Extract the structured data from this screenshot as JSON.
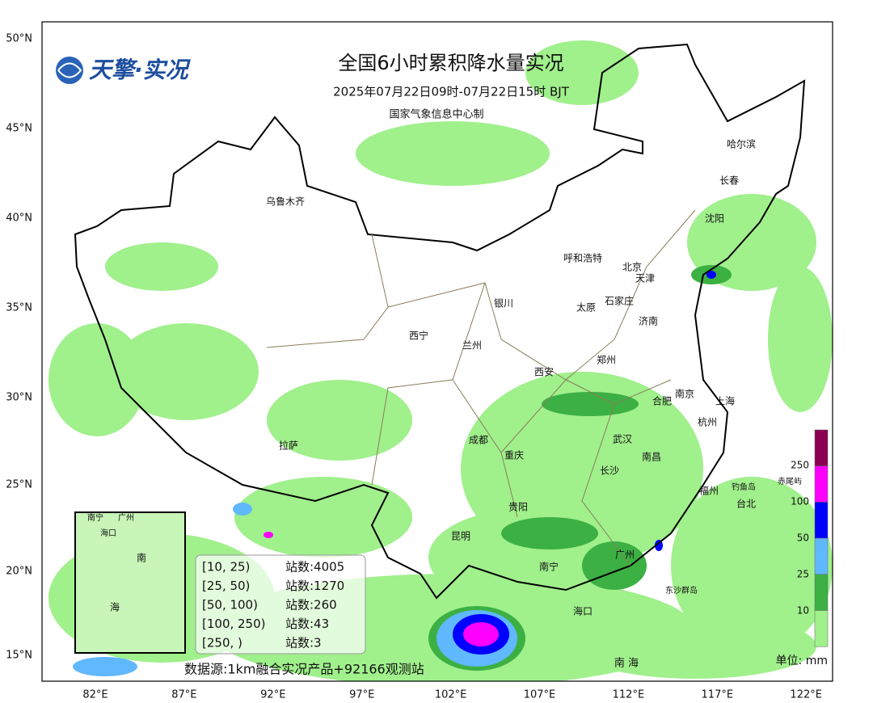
{
  "header": {
    "logo": "天擎·实况",
    "title": "全国6小时累积降水量实况",
    "subtitle": "2025年07月22日09时-07月22日15时 BJT",
    "producer": "国家气象信息中心制"
  },
  "axes": {
    "lat_labels": [
      "50°N",
      "45°N",
      "40°N",
      "35°N",
      "30°N",
      "25°N",
      "20°N",
      "15°N"
    ],
    "lon_labels": [
      "82°E",
      "87°E",
      "92°E",
      "97°E",
      "102°E",
      "107°E",
      "112°E",
      "117°E",
      "122°E"
    ]
  },
  "cities": [
    "乌鲁木齐",
    "哈尔滨",
    "长春",
    "沈阳",
    "呼和浩特",
    "北京",
    "天津",
    "银川",
    "太原",
    "石家庄",
    "济南",
    "西宁",
    "兰州",
    "郑州",
    "西安",
    "南京",
    "合肥",
    "上海",
    "杭州",
    "成都",
    "武汉",
    "重庆",
    "拉萨",
    "南昌",
    "长沙",
    "福州",
    "台北",
    "贵阳",
    "昆明",
    "广州",
    "南宁",
    "海口"
  ],
  "places": [
    "钓鱼岛",
    "赤尾屿",
    "东沙群岛",
    "南 海"
  ],
  "inset": {
    "labels": [
      "南宁",
      "广州",
      "海口",
      "南",
      "海"
    ]
  },
  "stats": {
    "rows": [
      [
        "[10, 25)",
        "站数:4005"
      ],
      [
        "[25, 50)",
        "站数:1270"
      ],
      [
        "[50, 100)",
        "站数:260"
      ],
      [
        "[100, 250)",
        "站数:43"
      ],
      [
        "[250, )",
        "站数:3"
      ]
    ],
    "source": "数据源:1km融合实况产品+92166观测站"
  },
  "legend": {
    "levels": [
      "250",
      "100",
      "50",
      "25",
      "10"
    ],
    "unit": "单位: mm"
  }
}
